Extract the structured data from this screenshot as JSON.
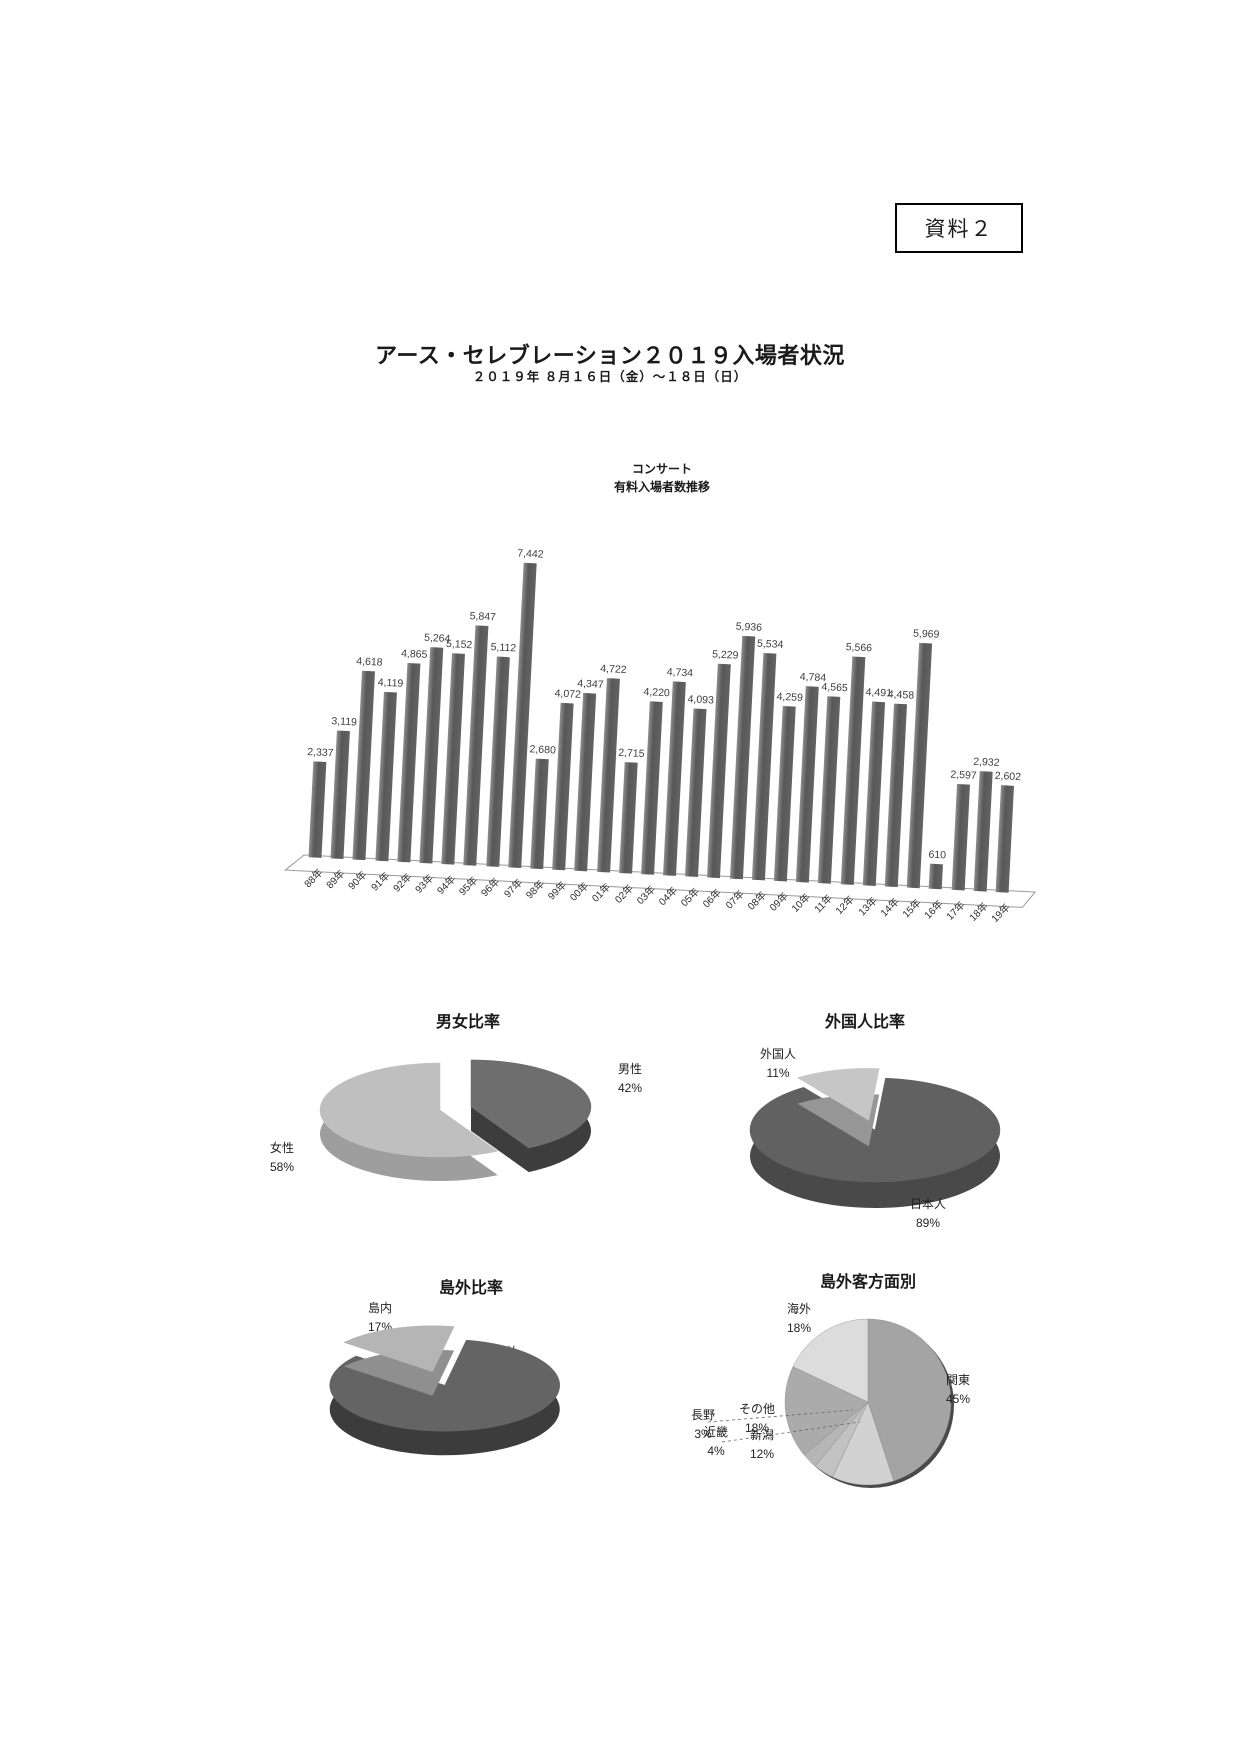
{
  "doc_label": "資料２",
  "title": "アース・セレブレーション２０１９入場者状況",
  "subtitle": "２０１９年 ８月１６日（金）～１８日（日）",
  "chart_data": [
    {
      "type": "bar",
      "title_lines": [
        "コンサート",
        "有料入場者数推移"
      ],
      "categories": [
        "88年",
        "89年",
        "90年",
        "91年",
        "92年",
        "93年",
        "94年",
        "95年",
        "96年",
        "97年",
        "98年",
        "99年",
        "00年",
        "01年",
        "02年",
        "03年",
        "04年",
        "05年",
        "06年",
        "07年",
        "08年",
        "09年",
        "10年",
        "11年",
        "12年",
        "13年",
        "14年",
        "15年",
        "16年",
        "17年",
        "18年",
        "19年"
      ],
      "values": [
        2337,
        3119,
        4618,
        4119,
        4865,
        5264,
        5152,
        5847,
        5112,
        7442,
        2680,
        4072,
        4347,
        4722,
        2715,
        4220,
        4734,
        4093,
        5229,
        5936,
        5534,
        4259,
        4784,
        4565,
        5566,
        4491,
        4458,
        5969,
        610,
        2597,
        2932,
        2602
      ],
      "ylim": [
        0,
        8000
      ],
      "grid": false,
      "style": "3d-column",
      "bar_color": "#5e5e5e"
    },
    {
      "type": "pie",
      "title": "男女比率",
      "slices": [
        {
          "label": "男性",
          "pct": 42,
          "color": "#6e6e6e",
          "side": "#3d3d3d"
        },
        {
          "label": "女性",
          "pct": 58,
          "color": "#bfbfbf",
          "side": "#9e9e9e"
        }
      ]
    },
    {
      "type": "pie",
      "title": "外国人比率",
      "slices": [
        {
          "label": "外国人",
          "pct": 11,
          "color": "#c6c6c6",
          "side": "#969696"
        },
        {
          "label": "日本人",
          "pct": 89,
          "color": "#616161",
          "side": "#494949"
        }
      ]
    },
    {
      "type": "pie",
      "title": "島外比率",
      "slices": [
        {
          "label": "島内",
          "pct": 17,
          "color": "#b5b5b5",
          "side": "#8f8f8f"
        },
        {
          "label": "島外",
          "pct": 83,
          "color": "#646464",
          "side": "#3c3c3c"
        }
      ]
    },
    {
      "type": "pie",
      "title": "島外客方面別",
      "slices": [
        {
          "label": "関東",
          "pct": 45,
          "color": "#a4a4a4"
        },
        {
          "label": "新潟",
          "pct": 12,
          "color": "#d2d2d2"
        },
        {
          "label": "近畿",
          "pct": 4,
          "color": "#c2c2c2"
        },
        {
          "label": "長野",
          "pct": 3,
          "color": "#b6b6b6"
        },
        {
          "label": "その他",
          "pct": 18,
          "color": "#ababab"
        },
        {
          "label": "海外",
          "pct": 18,
          "color": "#dcdcdc"
        }
      ]
    }
  ]
}
